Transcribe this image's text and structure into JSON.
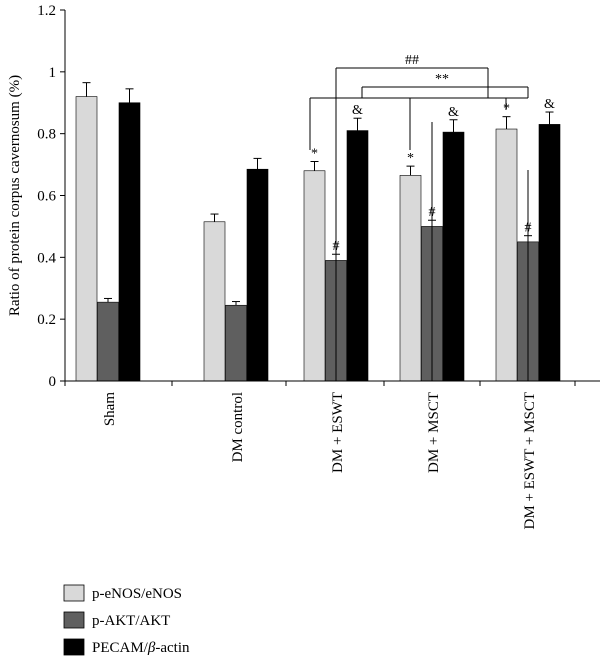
{
  "chart_data": {
    "type": "bar",
    "title": "",
    "xlabel": "",
    "ylabel": "Ratio of protein corpus cavernosum (%)",
    "ylim": [
      0,
      1.2
    ],
    "yticks": [
      "0",
      "0.2",
      "0.4",
      "0.6",
      "0.8",
      "1",
      "1.2"
    ],
    "grid": false,
    "legend_position": "bottom-left",
    "categories": [
      "Sham",
      "DM control",
      "DM + ESWT",
      "DM + MSCT",
      "DM + ESWT + MSCT"
    ],
    "series": [
      {
        "name": "p-eNOS/eNOS",
        "color": "#d9d9d9",
        "values": [
          0.92,
          0.515,
          0.68,
          0.665,
          0.815
        ],
        "errors": [
          0.045,
          0.025,
          0.03,
          0.03,
          0.04
        ],
        "markers": [
          "",
          "",
          "*",
          "*",
          "*"
        ]
      },
      {
        "name": "p-AKT/AKT",
        "color": "#5f5f5f",
        "values": [
          0.255,
          0.245,
          0.39,
          0.5,
          0.45
        ],
        "errors": [
          0.012,
          0.012,
          0.02,
          0.02,
          0.02
        ],
        "markers": [
          "",
          "",
          "#",
          "#",
          "#"
        ]
      },
      {
        "name": "PECAM/β-actin",
        "legend_prefix": "PECAM/",
        "legend_symbol": "β",
        "legend_suffix": "-actin",
        "color": "#000000",
        "values": [
          0.9,
          0.685,
          0.81,
          0.805,
          0.83
        ],
        "errors": [
          0.045,
          0.035,
          0.04,
          0.04,
          0.04
        ],
        "markers": [
          "",
          "",
          "&",
          "&",
          "&"
        ]
      }
    ],
    "comparisons": [
      {
        "label": "##",
        "from": 2,
        "to": 4
      },
      {
        "label": "**",
        "from": 2,
        "to": 4
      }
    ]
  }
}
